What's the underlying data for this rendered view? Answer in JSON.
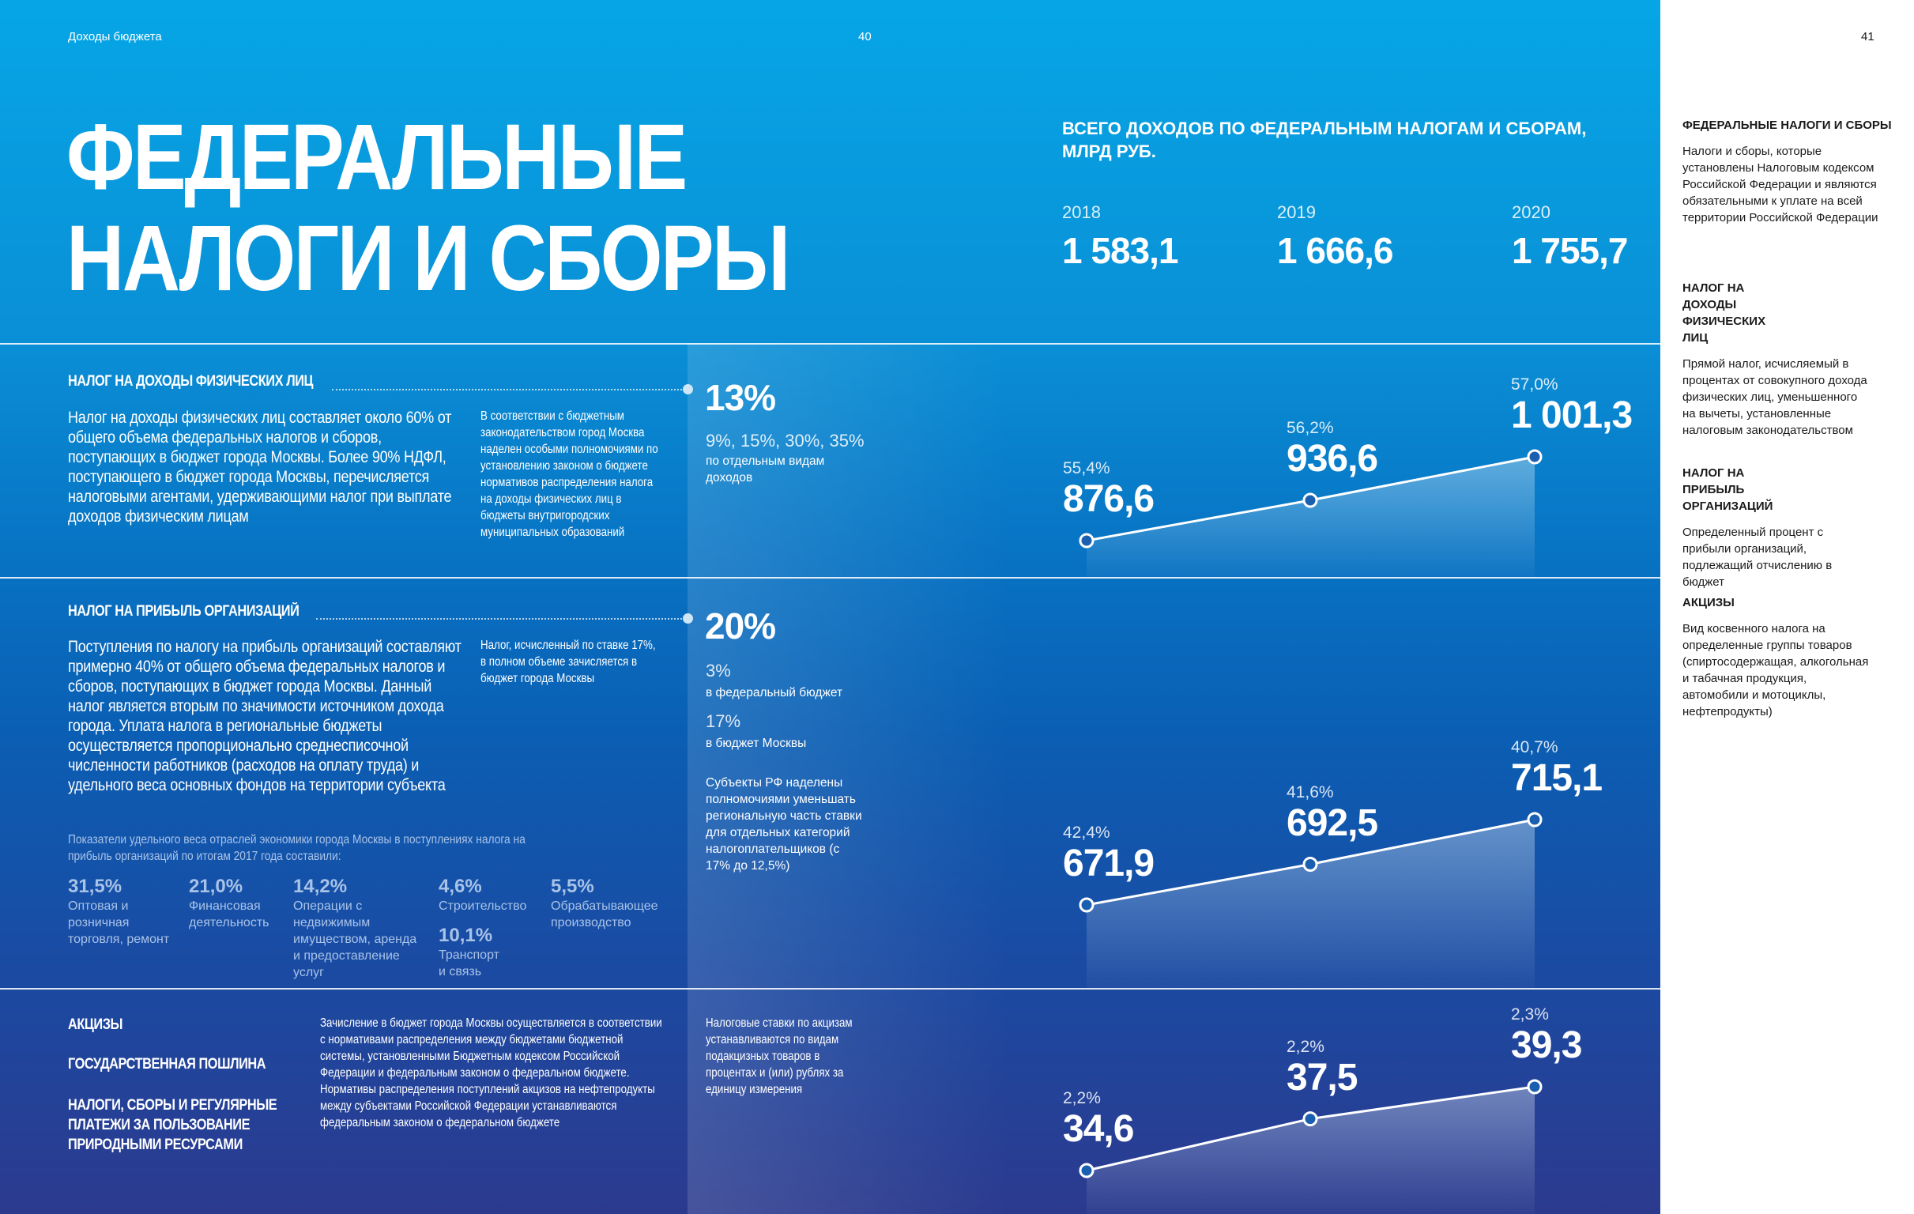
{
  "header": {
    "section": "Доходы бюджета",
    "page_left": "40",
    "page_right": "41"
  },
  "title": {
    "line1": "ФЕДЕРАЛЬНЫЕ",
    "line2": "НАЛОГИ И СБОРЫ"
  },
  "totals": {
    "heading_line1": "ВСЕГО ДОХОДОВ ПО ФЕДЕРАЛЬНЫМ НАЛОГАМ И СБОРАМ,",
    "heading_line2": "МЛРД РУБ.",
    "items": [
      {
        "year": "2018",
        "value": "1 583,1"
      },
      {
        "year": "2019",
        "value": "1 666,6"
      },
      {
        "year": "2020",
        "value": "1 755,7"
      }
    ]
  },
  "ndfl": {
    "heading": "НАЛОГ НА ДОХОДЫ ФИЗИЧЕСКИХ ЛИЦ",
    "body": "Налог на доходы физических лиц составляет около 60% от общего объема федеральных налогов и сборов, поступающих в бюджет города Москвы. Более 90% НДФЛ, поступающего в бюджет города Москвы, перечисляется налоговыми агентами, удерживающими налог при выплате доходов физическим лицам",
    "note": "В соответствии с бюджетным законодательством город Москва наделен особыми полномочиями по установлению законом о бюджете нормативов распределения налога на доходы физических лиц в бюджеты внутригородских муниципальных образований",
    "rate": "13%",
    "other_rates": "9%, 15%, 30%, 35%",
    "other_rates_label": "по отдельным видам доходов"
  },
  "profit": {
    "heading": "НАЛОГ НА ПРИБЫЛЬ ОРГАНИЗАЦИЙ",
    "body": "Поступления по налогу на прибыль организаций составляют примерно 40% от общего объема федеральных налогов и сборов, поступающих в бюджет города Москвы. Данный налог является вторым по значимости источником дохода города. Уплата налога в региональные бюджеты осуществляется пропорционально среднесписочной численности работников (расходов на оплату труда) и удельного веса основных фондов на территории субъекта",
    "note": "Налог, исчисленный по ставке 17%, в полном объеме зачисляется в бюджет города Москвы",
    "rate": "20%",
    "fed_rate": "3%",
    "fed_label": "в федеральный бюджет",
    "msk_rate": "17%",
    "msk_label": "в бюджет Москвы",
    "rate_note": "Субъекты РФ наделены полномочиями уменьшать региональную часть ставки для отдельных категорий налогоплательщиков (с 17% до 12,5%)",
    "stats_intro": "Показатели удельного веса отраслей экономики города Москвы в поступлениях налога на прибыль организаций по итогам 2017 года составили:",
    "stats": [
      {
        "value": "31,5%",
        "label": "Оптовая и розничная торговля, ремонт"
      },
      {
        "value": "21,0%",
        "label": "Финансовая деятельность"
      },
      {
        "value": "14,2%",
        "label": "Операции с недвижимым имуществом, аренда и предоставление услуг"
      },
      {
        "value": "4,6%",
        "label": "Строительство"
      },
      {
        "value": "10,1%",
        "label": "Транспорт и связь"
      },
      {
        "value": "5,5%",
        "label": "Обрабатывающее производство"
      }
    ]
  },
  "other": {
    "items": [
      "АКЦИЗЫ",
      "ГОСУДАРСТВЕННАЯ ПОШЛИНА",
      "НАЛОГИ, СБОРЫ И РЕГУЛЯРНЫЕ ПЛАТЕЖИ ЗА ПОЛЬЗОВАНИЕ ПРИРОДНЫМИ РЕСУРСАМИ"
    ],
    "body": "Зачисление в бюджет города Москвы осуществляется в соответствии с нормативами распределения между бюджетами бюджетной системы, установленными Бюджетным кодексом Российской Федерации и федеральным законом о федеральном бюджете. Нормативы распределения поступлений акцизов на нефтепродукты между субъектами Российской Федерации устанавливаются федеральным законом о федеральном бюджете",
    "note": "Налоговые ставки по акцизам устанавливаются по видам подакцизных товаров в процентах и (или) рублях за единицу измерения"
  },
  "glossary": [
    {
      "term": "ФЕДЕРАЛЬНЫЕ НАЛОГИ И СБОРЫ",
      "def": "Налоги и сборы, которые установлены Налоговым кодексом Российской Федерации и являются обязательными к уплате на всей территории Российской Федерации"
    },
    {
      "term": "НАЛОГ НА ДОХОДЫ ФИЗИЧЕСКИХ ЛИЦ",
      "def": "Прямой налог, исчисляемый в процентах от совокупного дохода физических лиц, уменьшенного на вычеты, установленные налоговым законодательством"
    },
    {
      "term": "НАЛОГ НА ПРИБЫЛЬ ОРГАНИЗАЦИЙ",
      "def": "Определенный процент с прибыли организаций, подлежащий отчислению в бюджет"
    },
    {
      "term": "АКЦИЗЫ",
      "def": "Вид косвенного налога на определенные группы товаров (спиртосодержащая, алкогольная и табачная продукция, автомобили и мотоциклы, нефтепродукты)"
    }
  ],
  "chart_data": [
    {
      "type": "line",
      "x": [
        "2018",
        "2019",
        "2020"
      ],
      "values": [
        876.6,
        936.6,
        1001.3
      ],
      "value_labels": [
        "876,6",
        "936,6",
        "1 001,3"
      ],
      "share_labels": [
        "55,4%",
        "56,2%",
        "57,0%"
      ]
    },
    {
      "type": "line",
      "x": [
        "2018",
        "2019",
        "2020"
      ],
      "values": [
        671.9,
        692.5,
        715.1
      ],
      "value_labels": [
        "671,9",
        "692,5",
        "715,1"
      ],
      "share_labels": [
        "42,4%",
        "41,6%",
        "40,7%"
      ]
    },
    {
      "type": "line",
      "x": [
        "2018",
        "2019",
        "2020"
      ],
      "values": [
        34.6,
        37.5,
        39.3
      ],
      "value_labels": [
        "34,6",
        "37,5",
        "39,3"
      ],
      "share_labels": [
        "2,2%",
        "2,2%",
        "2,3%"
      ]
    }
  ]
}
